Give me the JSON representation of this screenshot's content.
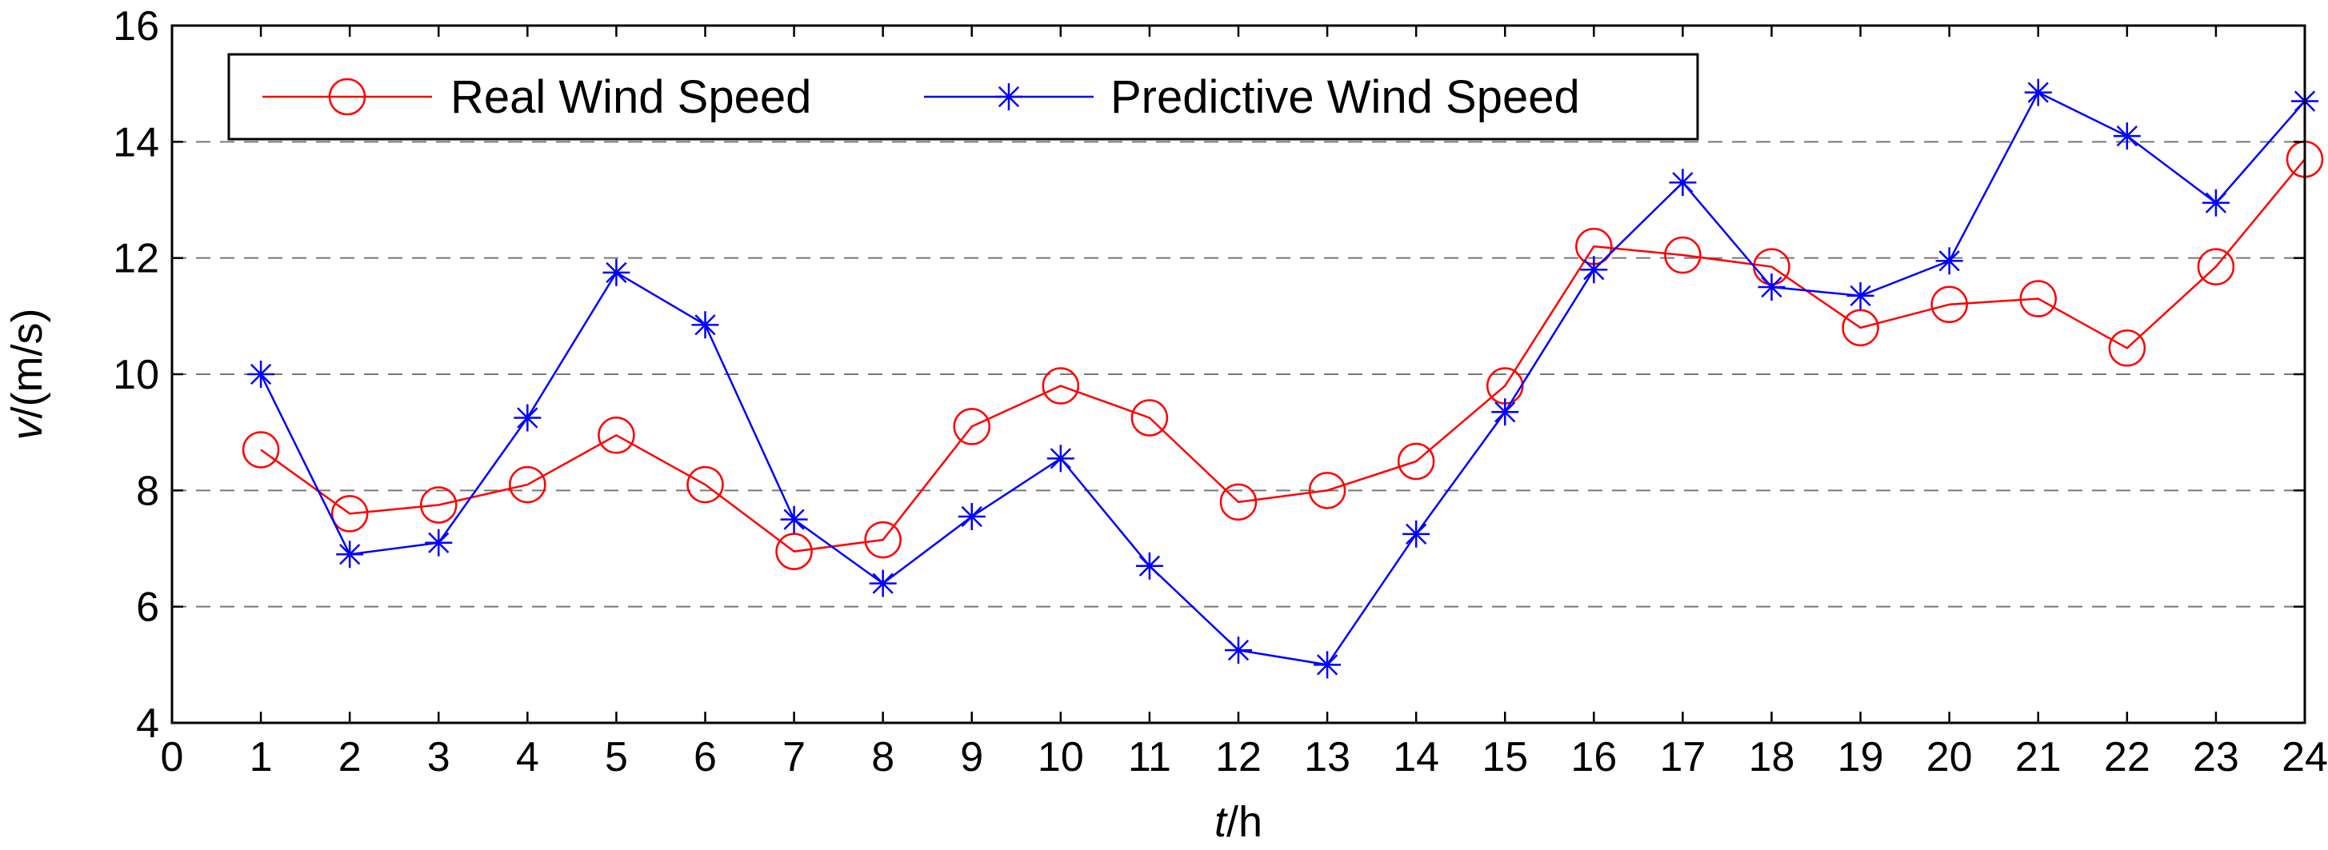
{
  "chart_data": {
    "type": "line",
    "title": "",
    "xlabel": "t/h",
    "xlabel_italic": "t",
    "xlabel_rest": "/h",
    "ylabel": "v/(m/s)",
    "ylabel_italic": "v",
    "ylabel_rest": "/(m/s)",
    "xlim": [
      0,
      24
    ],
    "ylim": [
      4,
      16
    ],
    "x_ticks": [
      "0",
      "1",
      "2",
      "3",
      "4",
      "5",
      "6",
      "7",
      "8",
      "9",
      "10",
      "11",
      "12",
      "13",
      "14",
      "15",
      "16",
      "17",
      "18",
      "19",
      "20",
      "21",
      "22",
      "23",
      "24"
    ],
    "y_ticks": [
      "4",
      "6",
      "8",
      "10",
      "12",
      "14",
      "16"
    ],
    "grid": "horizontal dashed",
    "legend_position": "top-left",
    "x": [
      1,
      2,
      3,
      4,
      5,
      6,
      7,
      8,
      9,
      10,
      11,
      12,
      13,
      14,
      15,
      16,
      17,
      18,
      19,
      20,
      21,
      22,
      23,
      24
    ],
    "series": [
      {
        "name": "Real Wind Speed",
        "color": "#ff0000",
        "marker": "circle",
        "values": [
          8.7,
          7.6,
          7.75,
          8.1,
          8.95,
          8.1,
          6.95,
          7.15,
          9.1,
          9.8,
          9.25,
          7.8,
          8.0,
          8.5,
          9.8,
          12.2,
          12.05,
          11.85,
          10.8,
          11.2,
          11.3,
          10.45,
          11.85,
          13.7
        ]
      },
      {
        "name": "Predictive Wind Speed",
        "color": "#0000ff",
        "marker": "star",
        "values": [
          10.0,
          6.9,
          7.1,
          9.25,
          11.75,
          10.85,
          7.5,
          6.4,
          7.55,
          8.55,
          6.7,
          5.25,
          5.0,
          7.25,
          9.35,
          11.8,
          13.3,
          11.5,
          11.35,
          11.95,
          14.85,
          14.1,
          12.95,
          14.7
        ]
      }
    ]
  }
}
